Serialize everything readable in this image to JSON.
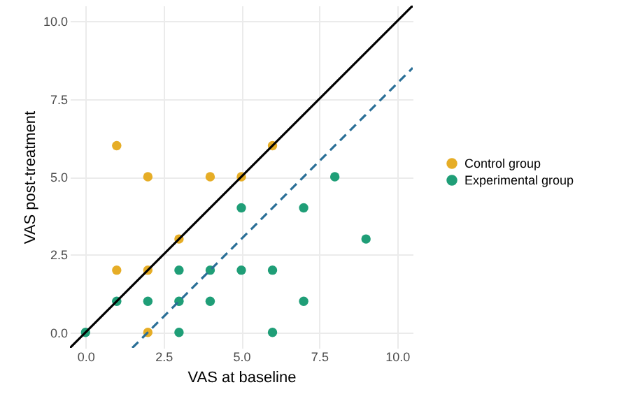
{
  "chart_data": {
    "type": "scatter",
    "xlabel": "VAS at baseline",
    "ylabel": "VAS post-treatment",
    "xlim": [
      -0.5,
      10.5
    ],
    "ylim": [
      -0.5,
      10.5
    ],
    "xticks": [
      {
        "value": 0,
        "label": "0.0"
      },
      2.5,
      {
        "value": 5,
        "label": "5.0"
      },
      7.5,
      {
        "value": 10,
        "label": "10.0"
      }
    ],
    "yticks": [
      {
        "value": 0,
        "label": "0.0"
      },
      2.5,
      {
        "value": 5,
        "label": "5.0"
      },
      7.5,
      {
        "value": 10,
        "label": "10.0"
      }
    ],
    "grid": true,
    "legend": "right",
    "marker": "circle",
    "series": [
      {
        "name": "Control group",
        "color": "#e6ad26",
        "x": [
          1,
          2,
          4,
          5,
          6,
          3,
          1,
          2,
          2
        ],
        "values": [
          6,
          5,
          5,
          5,
          6,
          3,
          2,
          2,
          0
        ]
      },
      {
        "name": "Experimental group",
        "color": "#1f9e77",
        "x": [
          0,
          1,
          2,
          3,
          4,
          3,
          4,
          5,
          6,
          5,
          7,
          8,
          9,
          7,
          3,
          6
        ],
        "values": [
          0,
          1,
          1,
          1,
          1,
          2,
          2,
          2,
          2,
          4,
          4,
          5,
          3,
          1,
          0,
          0
        ]
      },
      {
        "color": "#000000",
        "type": "line",
        "marker": "none",
        "line_style": "solid",
        "x": [
          -0.5,
          10.5
        ],
        "values": [
          -0.5,
          10.5
        ]
      },
      {
        "color": "#2a6f97",
        "type": "line",
        "marker": "none",
        "line_style": "dashed",
        "x": [
          1.5,
          10.5
        ],
        "values": [
          -0.5,
          8.5
        ]
      }
    ]
  }
}
